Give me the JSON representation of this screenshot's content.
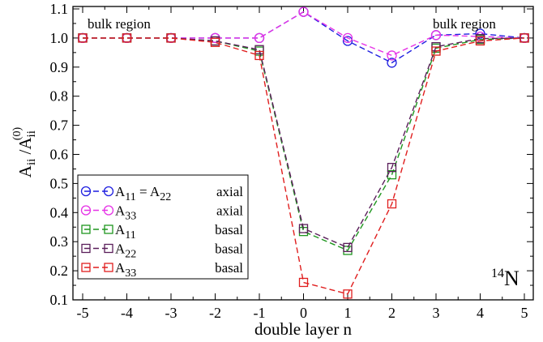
{
  "chart_data": {
    "type": "line",
    "xlabel": "double layer n",
    "ylabel": {
      "main": "A",
      "sub": "ii",
      "sep": " /A",
      "sub2": "ii",
      "sup2": "(0)"
    },
    "xlim": [
      -5,
      5
    ],
    "ylim": [
      0.1,
      1.1
    ],
    "x_ticks": [
      "-5",
      "-4",
      "-3",
      "-2",
      "-1",
      "0",
      "1",
      "2",
      "3",
      "4",
      "5"
    ],
    "y_ticks": [
      "0.1",
      "0.2",
      "0.3",
      "0.4",
      "0.5",
      "0.6",
      "0.7",
      "0.8",
      "0.9",
      "1.0",
      "1.1"
    ],
    "x": [
      -5,
      -4,
      -3,
      -2,
      -1,
      0,
      1,
      2,
      3,
      4,
      5
    ],
    "annotations": {
      "bulk_left": "bulk region",
      "bulk_right": "bulk region",
      "isotope_mass": "14",
      "isotope_symbol": "N"
    },
    "legend_position": "bottom-left",
    "series": [
      {
        "name_main": "A",
        "name_sub": "11",
        "name_rest": " = A",
        "name_sub2": "22",
        "type_label": "axial",
        "marker": "circle",
        "color": "#1f1fe0",
        "values": [
          1.0,
          1.0,
          1.0,
          1.0,
          1.0,
          1.09,
          0.99,
          0.915,
          1.01,
          1.015,
          1.0
        ]
      },
      {
        "name_main": "A",
        "name_sub": "33",
        "name_rest": "",
        "name_sub2": "",
        "type_label": "axial",
        "marker": "circle",
        "color": "#e632e6",
        "values": [
          1.0,
          1.0,
          1.0,
          1.0,
          1.0,
          1.09,
          1.0,
          0.94,
          1.01,
          1.005,
          1.0
        ]
      },
      {
        "name_main": "A",
        "name_sub": "11",
        "name_rest": "",
        "name_sub2": "",
        "type_label": "basal",
        "marker": "square",
        "color": "#1e961e",
        "values": [
          1.0,
          1.0,
          1.0,
          0.99,
          0.955,
          0.335,
          0.27,
          0.53,
          0.965,
          0.995,
          1.0
        ]
      },
      {
        "name_main": "A",
        "name_sub": "22",
        "name_rest": "",
        "name_sub2": "",
        "type_label": "basal",
        "marker": "square",
        "color": "#5a1e5a",
        "values": [
          1.0,
          1.0,
          1.0,
          0.99,
          0.96,
          0.345,
          0.28,
          0.555,
          0.97,
          0.998,
          1.0
        ]
      },
      {
        "name_main": "A",
        "name_sub": "33",
        "name_rest": "",
        "name_sub2": "",
        "type_label": "basal",
        "marker": "square",
        "color": "#e01e1e",
        "values": [
          1.0,
          1.0,
          1.0,
          0.985,
          0.94,
          0.16,
          0.12,
          0.43,
          0.955,
          0.99,
          1.0
        ]
      }
    ]
  }
}
